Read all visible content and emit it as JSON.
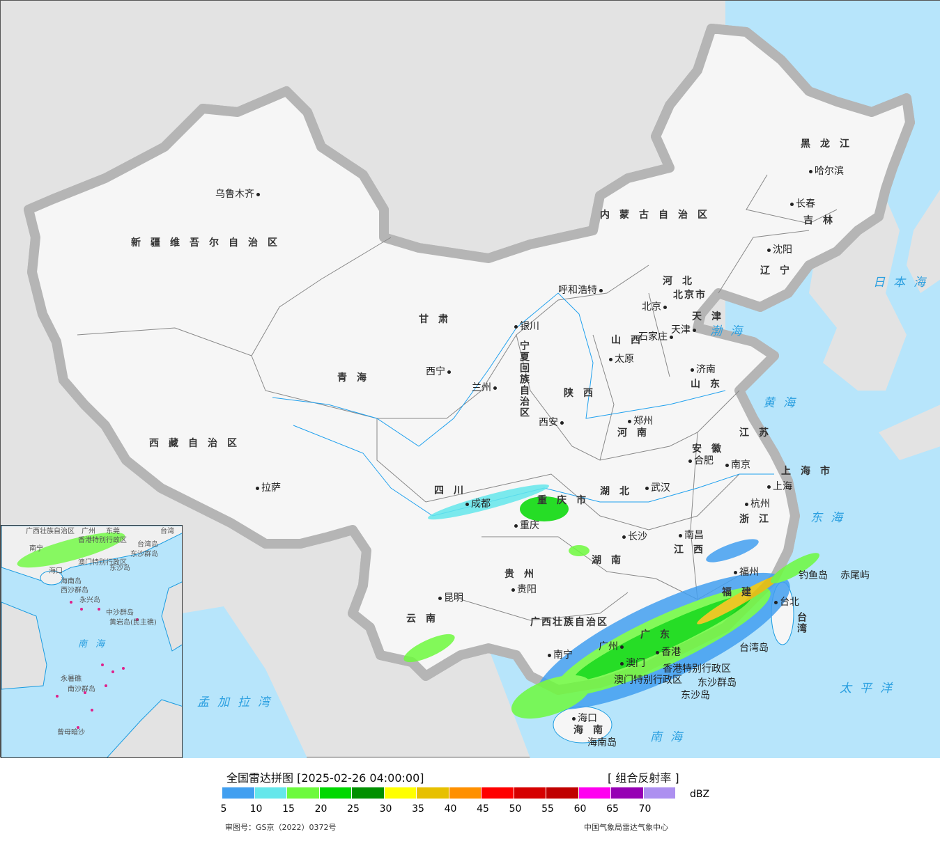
{
  "map": {
    "provinces": [
      "新疆维吾尔自治区",
      "西藏自治区",
      "青海",
      "甘肃",
      "内蒙古自治区",
      "黑龙江",
      "吉林",
      "辽宁",
      "河北",
      "山西",
      "陕西",
      "河南",
      "山东",
      "江苏",
      "安徽",
      "湖北",
      "四川",
      "重庆市",
      "贵州",
      "云南",
      "湖南",
      "江西",
      "浙江",
      "福建",
      "广东",
      "广西壮族自治区",
      "海南",
      "台湾",
      "宁夏回族自治区",
      "上海市",
      "北京市",
      "天津"
    ],
    "cities": [
      "乌鲁木齐",
      "拉萨",
      "西宁",
      "兰州",
      "银川",
      "呼和浩特",
      "哈尔滨",
      "长春",
      "沈阳",
      "北京",
      "石家庄",
      "太原",
      "天津",
      "济南",
      "郑州",
      "西安",
      "合肥",
      "南京",
      "上海",
      "杭州",
      "武汉",
      "成都",
      "重庆",
      "长沙",
      "南昌",
      "福州",
      "贵阳",
      "昆明",
      "南宁",
      "广州",
      "香港",
      "澳门",
      "海口",
      "台北"
    ],
    "seas": [
      "渤海",
      "黄海",
      "东海",
      "日本海",
      "南海",
      "太平洋",
      "孟加拉湾"
    ],
    "islands": [
      "钓鱼岛",
      "赤尾屿",
      "台湾岛",
      "东沙群岛",
      "海南岛",
      "香港特别行政区",
      "澳门特别行政区",
      "东沙岛"
    ],
    "inset_labels": [
      "广西壮族自治区",
      "南宁",
      "广州",
      "东莞",
      "香港特别行政区",
      "澳门特别行政区",
      "台湾岛",
      "东沙群岛",
      "东沙岛",
      "海口",
      "海南岛",
      "西沙群岛",
      "永兴岛",
      "中沙群岛",
      "黄岩岛(民主礁)",
      "南海",
      "永暑礁",
      "南沙群岛",
      "曾母暗沙",
      "台湾"
    ]
  },
  "legend": {
    "title": "全国雷达拼图 [2025-02-26 04:00:00]",
    "product": "[ 组合反射率 ]",
    "unit": "dBZ",
    "colors": [
      "#419ff0",
      "#64e7eb",
      "#6dfa3d",
      "#00d800",
      "#019000",
      "#ffff00",
      "#e7c000",
      "#ff9000",
      "#ff0000",
      "#d60000",
      "#c00000",
      "#ff00f0",
      "#9600b4",
      "#ad90f0"
    ],
    "ticks": [
      "5",
      "10",
      "15",
      "20",
      "25",
      "30",
      "35",
      "40",
      "45",
      "50",
      "55",
      "60",
      "65",
      "70"
    ],
    "approval": "审图号：GS京（2022）0372号",
    "source": "中国气象局雷达气象中心"
  }
}
